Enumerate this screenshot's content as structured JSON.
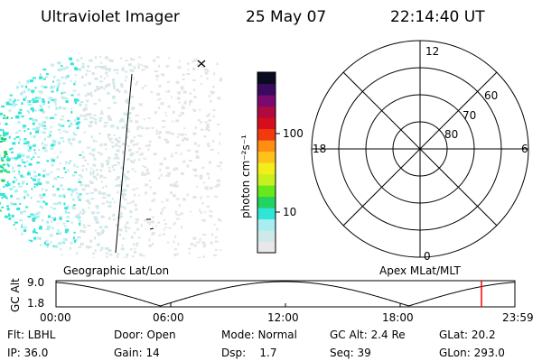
{
  "header": {
    "title": "Ultraviolet Imager",
    "date": "25 May 07",
    "time": "22:14:40 UT"
  },
  "colorbar": {
    "unit_label": "photon cm⁻²s⁻¹",
    "tick_100": "100",
    "tick_10": "10",
    "colors": [
      "#e8e8e8",
      "#cfe9ea",
      "#a8eef0",
      "#30e5d6",
      "#22d35f",
      "#66e81a",
      "#c8f01e",
      "#f2ee1a",
      "#ffc21c",
      "#ff8e12",
      "#f23a10",
      "#d60e1c",
      "#b00a40",
      "#7a0a70",
      "#3a0a60",
      "#0a0a20"
    ]
  },
  "polar_plot": {
    "mlt_labels": {
      "top": "12",
      "bottom": "0",
      "left": "18",
      "right": "6"
    },
    "mlat_labels": [
      "60",
      "70",
      "80"
    ]
  },
  "timeline": {
    "left_title": "Geographic Lat/Lon",
    "right_title": "Apex MLat/MLT",
    "ylabel": "GC Alt",
    "y_ticks": [
      "9.0",
      "1.8"
    ],
    "x_ticks": [
      "00:00",
      "06:00",
      "12:00",
      "18:00",
      "23:59"
    ],
    "marker_color": "#ff0000"
  },
  "info": {
    "flt": "Flt: LBHL",
    "door": "Door: Open",
    "mode": "Mode: Normal",
    "gc_alt": "GC Alt: 2.4 Re",
    "glat": "GLat:  20.2",
    "ip": "IP: 36.0",
    "gain": "Gain: 14",
    "dsp": "Dsp:    1.7",
    "seq": "Seq: 39",
    "glon": "GLon: 293.0"
  }
}
